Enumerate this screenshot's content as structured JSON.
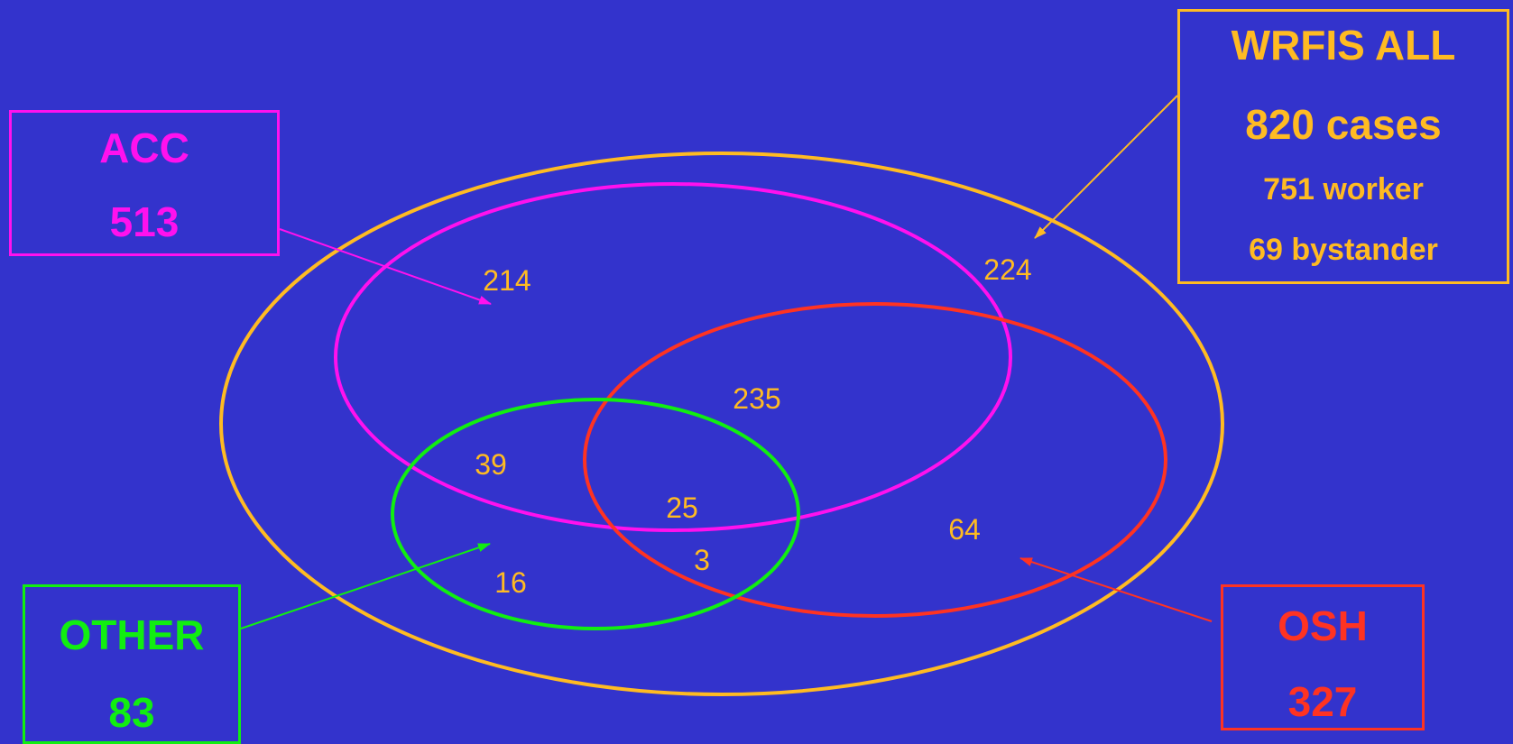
{
  "colors": {
    "background": "#3333cc",
    "all": "#ffbb22",
    "acc": "#ff11ee",
    "osh": "#ff3322",
    "other": "#11ee11",
    "numbers": "#ffbb22"
  },
  "boxes": {
    "all": {
      "title": "WRFIS ALL",
      "total": "820 cases",
      "worker": "751 worker",
      "bystander": "69 bystander"
    },
    "acc": {
      "title": "ACC",
      "count": "513"
    },
    "osh": {
      "title": "OSH",
      "count": "327"
    },
    "other": {
      "title": "OTHER",
      "count": "83"
    }
  },
  "regions": {
    "acc_only": "214",
    "all_only": "224",
    "acc_osh": "235",
    "acc_other": "39",
    "acc_osh_other": "25",
    "osh_other": "3",
    "other_only": "16",
    "osh_only": "64"
  }
}
